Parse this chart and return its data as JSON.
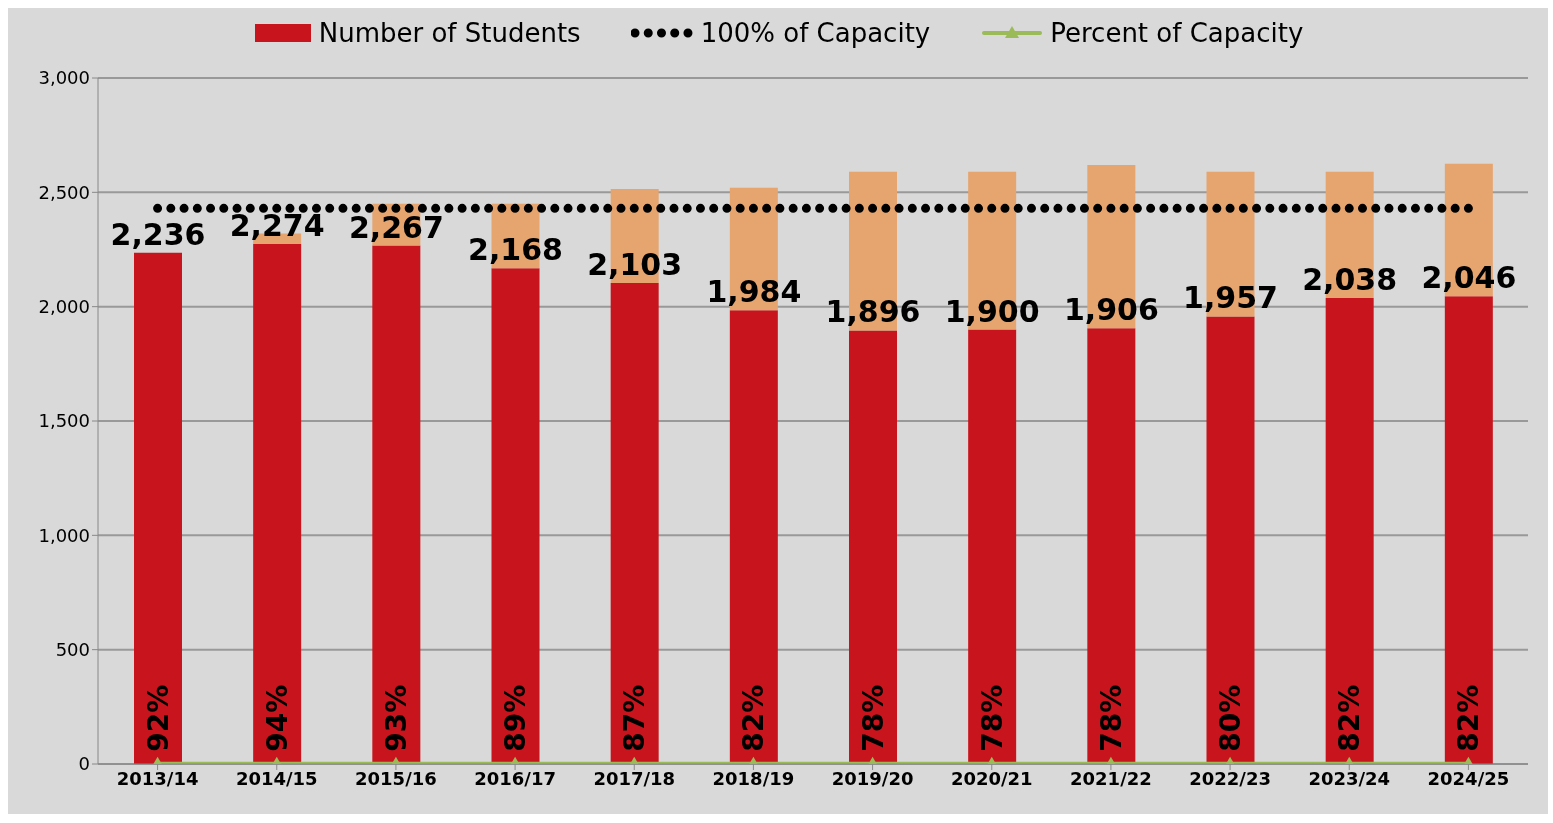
{
  "chart_data": {
    "type": "bar",
    "stacked": true,
    "categories": [
      "2013/14",
      "2014/15",
      "2015/16",
      "2016/17",
      "2017/18",
      "2018/19",
      "2019/20",
      "2020/21",
      "2021/22",
      "2022/23",
      "2023/24",
      "2024/25"
    ],
    "series": [
      {
        "name": "Number of Students",
        "color": "#c8141c",
        "values": [
          2236,
          2274,
          2267,
          2168,
          2103,
          1984,
          1896,
          1900,
          1906,
          1957,
          2038,
          2046
        ],
        "value_labels": [
          "2,236",
          "2,274",
          "2,267",
          "2,168",
          "2,103",
          "1,984",
          "1,896",
          "1,900",
          "1,906",
          "1,957",
          "2,038",
          "2,046"
        ]
      },
      {
        "color": "#e6a46e",
        "values": [
          null,
          46,
          183,
          282,
          412,
          536,
          694,
          690,
          714,
          633,
          552,
          579
        ]
      },
      {
        "name": "100% of Capacity",
        "type": "line",
        "color": "#000000",
        "line_style": "dotted",
        "values": [
          2430,
          2430,
          2430,
          2430,
          2430,
          2430,
          2430,
          2430,
          2430,
          2430,
          2430,
          2430
        ]
      },
      {
        "name": "Percent of Capacity",
        "type": "line",
        "color": "#9bbb59",
        "marker": "triangle",
        "values": [
          0.92,
          0.94,
          0.93,
          0.89,
          0.87,
          0.82,
          0.78,
          0.78,
          0.78,
          0.8,
          0.82,
          0.82
        ],
        "value_labels": [
          "92%",
          "94%",
          "93%",
          "89%",
          "87%",
          "82%",
          "78%",
          "78%",
          "78%",
          "80%",
          "82%",
          "82%"
        ]
      }
    ],
    "ylim": [
      0,
      3000
    ],
    "yticks": [
      {
        "value": 0,
        "label": "0"
      },
      {
        "value": 500,
        "label": "500"
      },
      {
        "value": 1000,
        "label": "1,000"
      },
      {
        "value": 1500,
        "label": "1,500"
      },
      {
        "value": 2000,
        "label": "2,000"
      },
      {
        "value": 2500,
        "label": "2,500"
      },
      {
        "value": 3000,
        "label": "3,000"
      }
    ],
    "grid": "y",
    "legend": "top"
  }
}
